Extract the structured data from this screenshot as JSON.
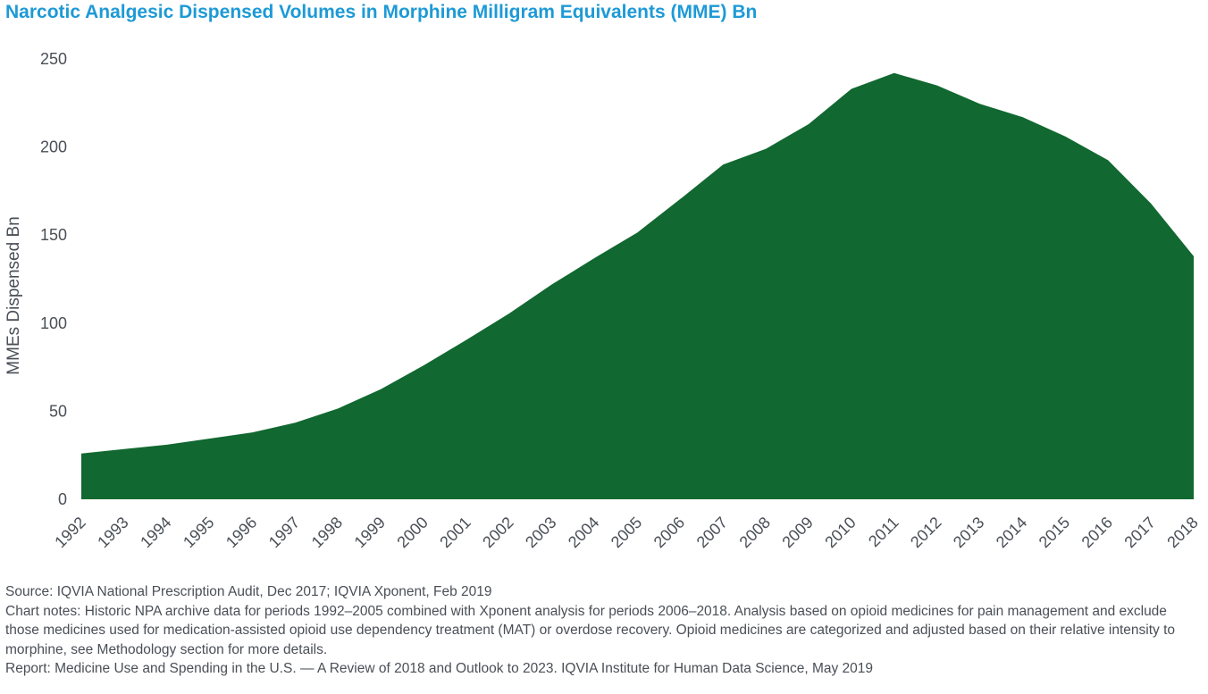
{
  "title": "Narcotic Analgesic Dispensed Volumes in Morphine Milligram Equivalents (MME) Bn",
  "chart_data": {
    "type": "area",
    "title": "Narcotic Analgesic Dispensed Volumes in Morphine Milligram Equivalents (MME) Bn",
    "xlabel": "",
    "ylabel": "MMEs Dispensed Bn",
    "ylim": [
      0,
      250
    ],
    "yticks": [
      "0",
      "50",
      "100",
      "150",
      "200",
      "250"
    ],
    "grid": false,
    "color": "#116830",
    "categories": [
      "1992",
      "1993",
      "1994",
      "1995",
      "1996",
      "1997",
      "1998",
      "1999",
      "2000",
      "2001",
      "2002",
      "2003",
      "2004",
      "2005",
      "2006",
      "2007",
      "2008",
      "2009",
      "2010",
      "2011",
      "2012",
      "2013",
      "2014",
      "2015",
      "2016",
      "2017",
      "2018"
    ],
    "values": [
      26,
      28.5,
      31,
      34.5,
      38,
      43.5,
      51.5,
      62.5,
      76,
      90.5,
      105.5,
      122,
      137,
      151.5,
      170.5,
      190,
      199,
      213,
      233,
      242,
      235,
      224.5,
      217,
      206,
      192.5,
      168,
      138
    ]
  },
  "notes": {
    "source": "Source: IQVIA National Prescription Audit, Dec 2017; IQVIA Xponent, Feb 2019",
    "chart_notes": "Chart notes: Historic NPA archive data for periods 1992–2005 combined with Xponent analysis for periods 2006–2018. Analysis based on opioid medicines for pain management and exclude those medicines used for medication-assisted opioid use dependency treatment (MAT) or overdose recovery. Opioid medicines are categorized and adjusted based on their relative intensity to morphine, see Methodology section for more details.",
    "report": "Report: Medicine Use and Spending in the U.S. — A Review of 2018 and Outlook to 2023. IQVIA Institute for Human Data Science, May 2019"
  }
}
